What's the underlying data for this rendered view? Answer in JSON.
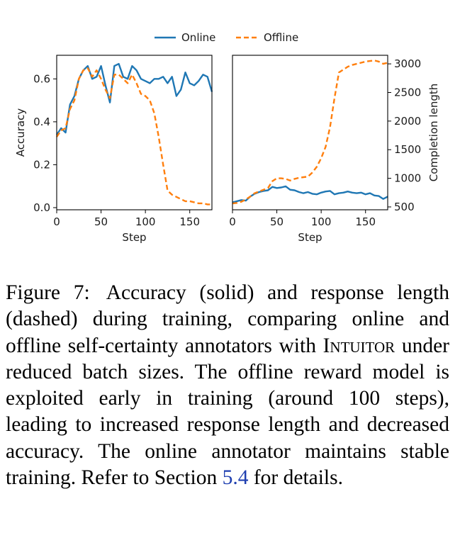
{
  "colors": {
    "online": "#1f77b4",
    "offline": "#ff7f0e",
    "axis": "#000000"
  },
  "legend": {
    "placement": "top-center",
    "items": [
      "Online",
      "Offline"
    ]
  },
  "chart_data": [
    {
      "type": "line",
      "panel": "left",
      "title": "",
      "xlabel": "Step",
      "ylabel": "Accuracy",
      "xlim": [
        0,
        175
      ],
      "ylim": [
        -0.01,
        0.71
      ],
      "xticks": [
        0,
        50,
        100,
        150
      ],
      "yticks": [
        0.0,
        0.2,
        0.4,
        0.6
      ],
      "ytick_labels": [
        "0.0",
        "0.2",
        "0.4",
        "0.6"
      ],
      "grid": false,
      "series": [
        {
          "name": "Online",
          "style": "solid",
          "x": [
            0,
            5,
            10,
            15,
            20,
            25,
            30,
            35,
            40,
            45,
            50,
            55,
            60,
            65,
            70,
            75,
            80,
            85,
            90,
            95,
            100,
            105,
            110,
            115,
            120,
            125,
            130,
            135,
            140,
            145,
            150,
            155,
            160,
            165,
            170,
            175
          ],
          "y": [
            0.34,
            0.37,
            0.35,
            0.48,
            0.52,
            0.6,
            0.64,
            0.66,
            0.6,
            0.61,
            0.66,
            0.57,
            0.49,
            0.66,
            0.67,
            0.61,
            0.6,
            0.66,
            0.64,
            0.6,
            0.59,
            0.58,
            0.6,
            0.6,
            0.61,
            0.58,
            0.61,
            0.52,
            0.55,
            0.63,
            0.58,
            0.57,
            0.59,
            0.62,
            0.61,
            0.54
          ]
        },
        {
          "name": "Offline",
          "style": "dashed",
          "x": [
            0,
            5,
            10,
            15,
            20,
            25,
            30,
            35,
            40,
            45,
            50,
            55,
            60,
            65,
            70,
            75,
            80,
            85,
            90,
            95,
            100,
            105,
            110,
            115,
            120,
            125,
            130,
            135,
            140,
            145,
            150,
            155,
            160,
            165,
            170,
            175
          ],
          "y": [
            0.33,
            0.36,
            0.37,
            0.46,
            0.5,
            0.6,
            0.64,
            0.65,
            0.61,
            0.64,
            0.6,
            0.55,
            0.51,
            0.62,
            0.62,
            0.6,
            0.58,
            0.62,
            0.58,
            0.53,
            0.52,
            0.5,
            0.44,
            0.33,
            0.2,
            0.08,
            0.06,
            0.05,
            0.04,
            0.03,
            0.03,
            0.025,
            0.02,
            0.02,
            0.015,
            0.015
          ]
        }
      ]
    },
    {
      "type": "line",
      "panel": "right",
      "title": "",
      "xlabel": "Step",
      "ylabel": "Completion length",
      "xlim": [
        0,
        175
      ],
      "ylim": [
        450,
        3150
      ],
      "xticks": [
        0,
        50,
        100,
        150
      ],
      "yticks": [
        500,
        1000,
        1500,
        2000,
        2500,
        3000
      ],
      "y_axis_side": "right",
      "grid": false,
      "series": [
        {
          "name": "Online",
          "style": "solid",
          "x": [
            0,
            5,
            10,
            15,
            20,
            25,
            30,
            35,
            40,
            45,
            50,
            55,
            60,
            65,
            70,
            75,
            80,
            85,
            90,
            95,
            100,
            105,
            110,
            115,
            120,
            125,
            130,
            135,
            140,
            145,
            150,
            155,
            160,
            165,
            170,
            175
          ],
          "y": [
            580,
            600,
            620,
            610,
            680,
            730,
            760,
            780,
            790,
            850,
            830,
            840,
            860,
            800,
            790,
            760,
            740,
            760,
            730,
            720,
            750,
            770,
            780,
            720,
            740,
            750,
            770,
            750,
            740,
            750,
            720,
            740,
            700,
            690,
            640,
            680
          ]
        },
        {
          "name": "Offline",
          "style": "dashed",
          "x": [
            0,
            5,
            10,
            15,
            20,
            25,
            30,
            35,
            40,
            45,
            50,
            55,
            60,
            65,
            70,
            75,
            80,
            85,
            90,
            95,
            100,
            105,
            110,
            115,
            120,
            125,
            130,
            135,
            140,
            145,
            150,
            155,
            160,
            165,
            170,
            175
          ],
          "y": [
            560,
            570,
            590,
            630,
            680,
            740,
            770,
            800,
            830,
            950,
            1000,
            1000,
            990,
            960,
            990,
            1010,
            1020,
            1030,
            1100,
            1200,
            1350,
            1550,
            1900,
            2400,
            2850,
            2900,
            2950,
            2980,
            3000,
            3020,
            3040,
            3050,
            3060,
            3040,
            3000,
            3020
          ]
        }
      ]
    }
  ],
  "caption": {
    "label": "Figure 7:",
    "text1": "Accuracy (solid) and response length (dashed) during training, comparing online and offline self-certainty annotators with ",
    "method": "Intuitor",
    "text2": " under reduced batch sizes. The offline reward model is exploited early in training (around 100 steps), leading to increased response length and decreased accuracy. The online annotator maintains stable training. Refer to Section ",
    "section_ref": "5.4",
    "text3": " for details."
  }
}
